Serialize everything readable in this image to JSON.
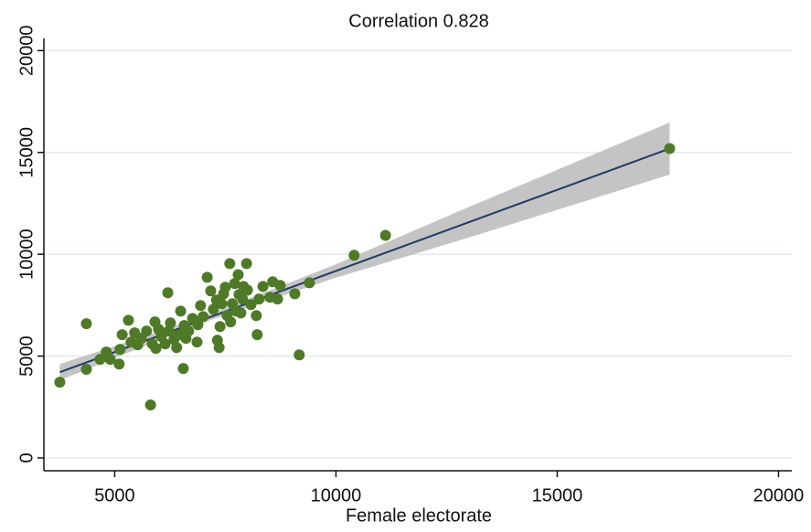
{
  "chart_data": {
    "type": "scatter",
    "title": "Correlation 0.828",
    "x_label": "Female electorate",
    "x": [
      3760,
      4360,
      4360,
      4670,
      4810,
      4900,
      5100,
      5120,
      5170,
      5310,
      5370,
      5450,
      5520,
      5600,
      5720,
      5810,
      5850,
      5910,
      5930,
      5990,
      6050,
      6140,
      6200,
      6220,
      6260,
      6340,
      6400,
      6450,
      6490,
      6550,
      6570,
      6610,
      6670,
      6760,
      6860,
      6880,
      6940,
      7000,
      7090,
      7170,
      7230,
      7300,
      7320,
      7360,
      7380,
      7420,
      7460,
      7500,
      7540,
      7600,
      7620,
      7660,
      7710,
      7750,
      7790,
      7810,
      7850,
      7890,
      7910,
      7980,
      8000,
      8080,
      8200,
      8220,
      8260,
      8350,
      8510,
      8570,
      8680,
      8740,
      9070,
      9170,
      9400,
      10410,
      11120,
      17540
    ],
    "y": [
      3720,
      6590,
      4350,
      4840,
      5200,
      4840,
      4610,
      5330,
      6050,
      6760,
      5690,
      6140,
      5560,
      5870,
      6230,
      2600,
      5600,
      6680,
      5380,
      6320,
      5960,
      5600,
      8110,
      6230,
      6630,
      5820,
      5420,
      6050,
      7210,
      4390,
      6500,
      5870,
      6230,
      6850,
      5690,
      6540,
      7480,
      6940,
      8870,
      8200,
      7300,
      7750,
      5780,
      5420,
      6450,
      7570,
      8060,
      8380,
      6990,
      9540,
      6680,
      7570,
      8560,
      7210,
      9000,
      8020,
      7120,
      7800,
      8420,
      9540,
      8240,
      7530,
      6990,
      6050,
      7800,
      8420,
      7890,
      8650,
      7800,
      8470,
      8060,
      5060,
      8600,
      9950,
      10930,
      15190
    ],
    "color": "#4e7a27",
    "fit": {
      "x": [
        3760,
        17540
      ],
      "y": [
        4210,
        15190
      ],
      "color": "#1f3b63"
    },
    "ci": {
      "x": [
        3760,
        5000,
        7100,
        10000,
        13000,
        17540
      ],
      "lower": [
        3810,
        4910,
        6720,
        8850,
        10820,
        13910
      ],
      "upper": [
        4610,
        5490,
        7020,
        9510,
        12320,
        16470
      ],
      "color": "#c4c4c4"
    },
    "xlim": [
      3400,
      20300
    ],
    "ylim": [
      -630,
      20600
    ],
    "xticks": [
      5000,
      10000,
      15000,
      20000
    ],
    "yticks": [
      0,
      5000,
      10000,
      15000,
      20000
    ],
    "grid": true
  }
}
